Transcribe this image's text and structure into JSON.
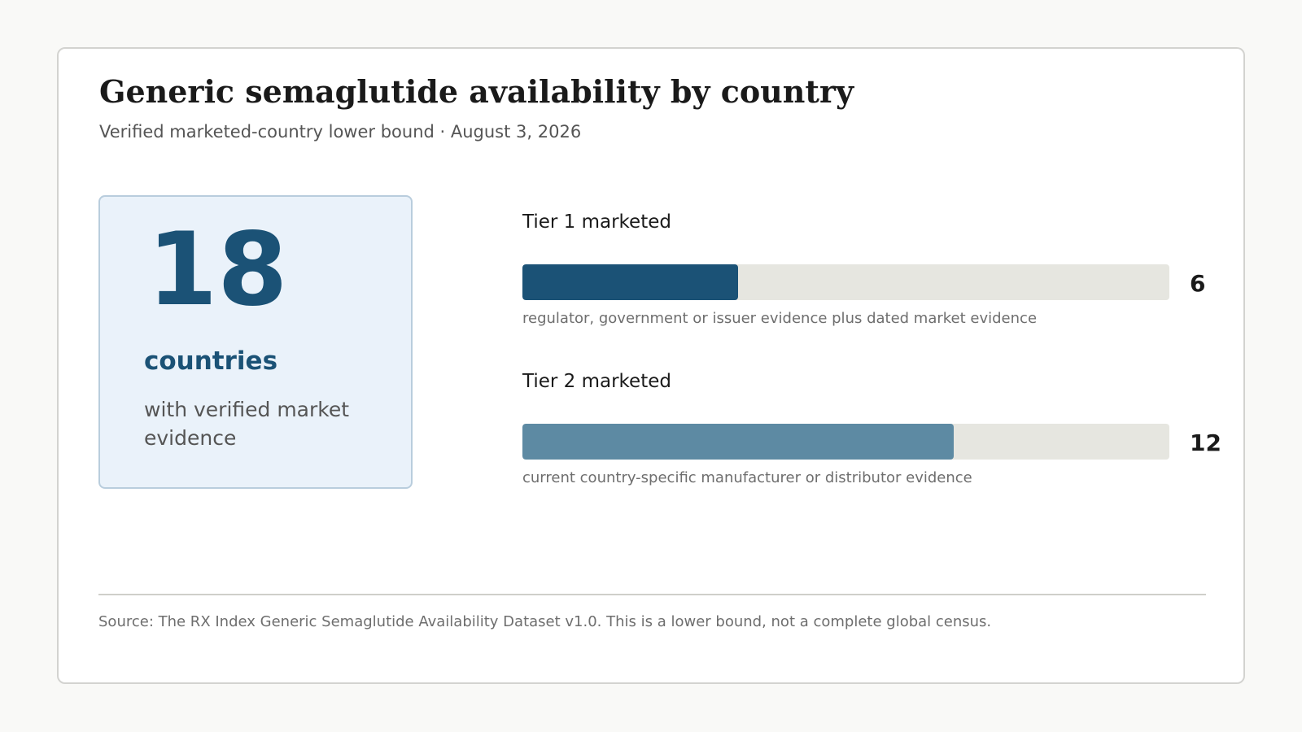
{
  "title": "Generic semaglutide availability by country",
  "subtitle": "Verified marketed-country lower bound · August 3, 2026",
  "summary": {
    "number": "18",
    "unit": "countries",
    "description": "with verified market evidence"
  },
  "chart_data": {
    "type": "bar",
    "orientation": "horizontal",
    "categories": [
      "Tier 1 marketed",
      "Tier 2 marketed"
    ],
    "values": [
      6,
      12
    ],
    "descriptions": [
      "regulator, government or issuer evidence plus dated market evidence",
      "current country-specific manufacturer or distributor evidence"
    ],
    "xlim": [
      0,
      18
    ],
    "colors": [
      "#1b5276",
      "#5d8aa3"
    ],
    "track_color": "#e6e6e0",
    "title": "Generic semaglutide availability by country",
    "xlabel": "",
    "ylabel": "",
    "grid": false,
    "legend": "none"
  },
  "source": "Source: The RX Index Generic Semaglutide Availability Dataset v1.0. This is a lower bound, not a complete global census."
}
